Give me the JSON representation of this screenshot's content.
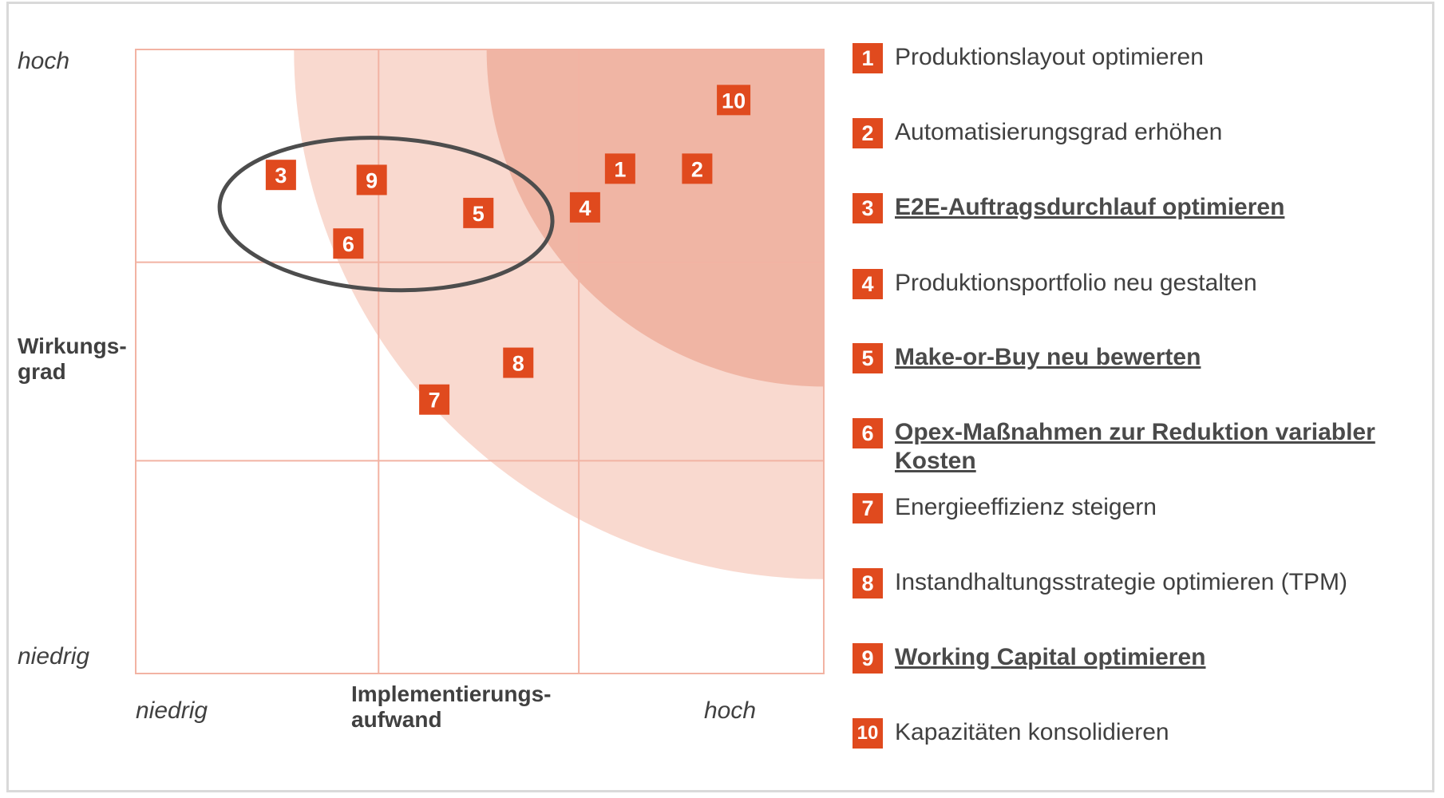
{
  "chart_data": {
    "type": "scatter",
    "title": "",
    "xlabel": "Implementierungs-\naufwand",
    "ylabel": "Wirkungs-\ngrad",
    "x_low_label": "niedrig",
    "x_high_label": "hoch",
    "y_low_label": "niedrig",
    "y_high_label": "hoch",
    "xlim": [
      0,
      100
    ],
    "ylim": [
      0,
      100
    ],
    "grid": true,
    "grid_divisions_x": [
      35.3,
      64.4
    ],
    "grid_divisions_y": [
      34.1,
      65.9
    ],
    "highlight_group": [
      "3",
      "9",
      "5",
      "6"
    ],
    "zones": [
      {
        "name": "zone-light",
        "color": "#f9d9cf",
        "center": [
          100,
          100
        ],
        "radius": 77
      },
      {
        "name": "zone-dark",
        "color": "#f0b5a4",
        "center": [
          100,
          100
        ],
        "radius": 49
      }
    ],
    "points": [
      {
        "id": "1",
        "x": 70.4,
        "y": 80.9
      },
      {
        "id": "2",
        "x": 81.6,
        "y": 80.9
      },
      {
        "id": "3",
        "x": 21.1,
        "y": 79.9
      },
      {
        "id": "4",
        "x": 65.3,
        "y": 74.7
      },
      {
        "id": "5",
        "x": 49.8,
        "y": 73.8
      },
      {
        "id": "6",
        "x": 30.9,
        "y": 68.9
      },
      {
        "id": "7",
        "x": 43.4,
        "y": 43.9
      },
      {
        "id": "8",
        "x": 55.6,
        "y": 49.8
      },
      {
        "id": "9",
        "x": 34.3,
        "y": 79.1
      },
      {
        "id": "10",
        "x": 86.9,
        "y": 91.9
      }
    ]
  },
  "legend": [
    {
      "num": "1",
      "label": "Produktionslayout optimieren",
      "highlight": false
    },
    {
      "num": "2",
      "label": "Automatisierungsgrad erhöhen",
      "highlight": false
    },
    {
      "num": "3",
      "label": "E2E-Auftragsdurchlauf optimieren",
      "highlight": true
    },
    {
      "num": "4",
      "label": "Produktionsportfolio neu gestalten",
      "highlight": false
    },
    {
      "num": "5",
      "label": "Make-or-Buy neu bewerten",
      "highlight": true
    },
    {
      "num": "6",
      "label": "Opex-Maßnahmen zur Reduktion variabler Kosten",
      "highlight": true
    },
    {
      "num": "7",
      "label": "Energieeffizienz steigern",
      "highlight": false
    },
    {
      "num": "8",
      "label": "Instandhaltungsstrategie optimieren (TPM)",
      "highlight": false
    },
    {
      "num": "9",
      "label": "Working Capital optimieren",
      "highlight": true
    },
    {
      "num": "10",
      "label": "Kapazitäten konsolidieren",
      "highlight": false
    }
  ],
  "colors": {
    "marker": "#e04a1e",
    "grid": "#f2b3a3",
    "ellipse": "#4d4d4d"
  }
}
